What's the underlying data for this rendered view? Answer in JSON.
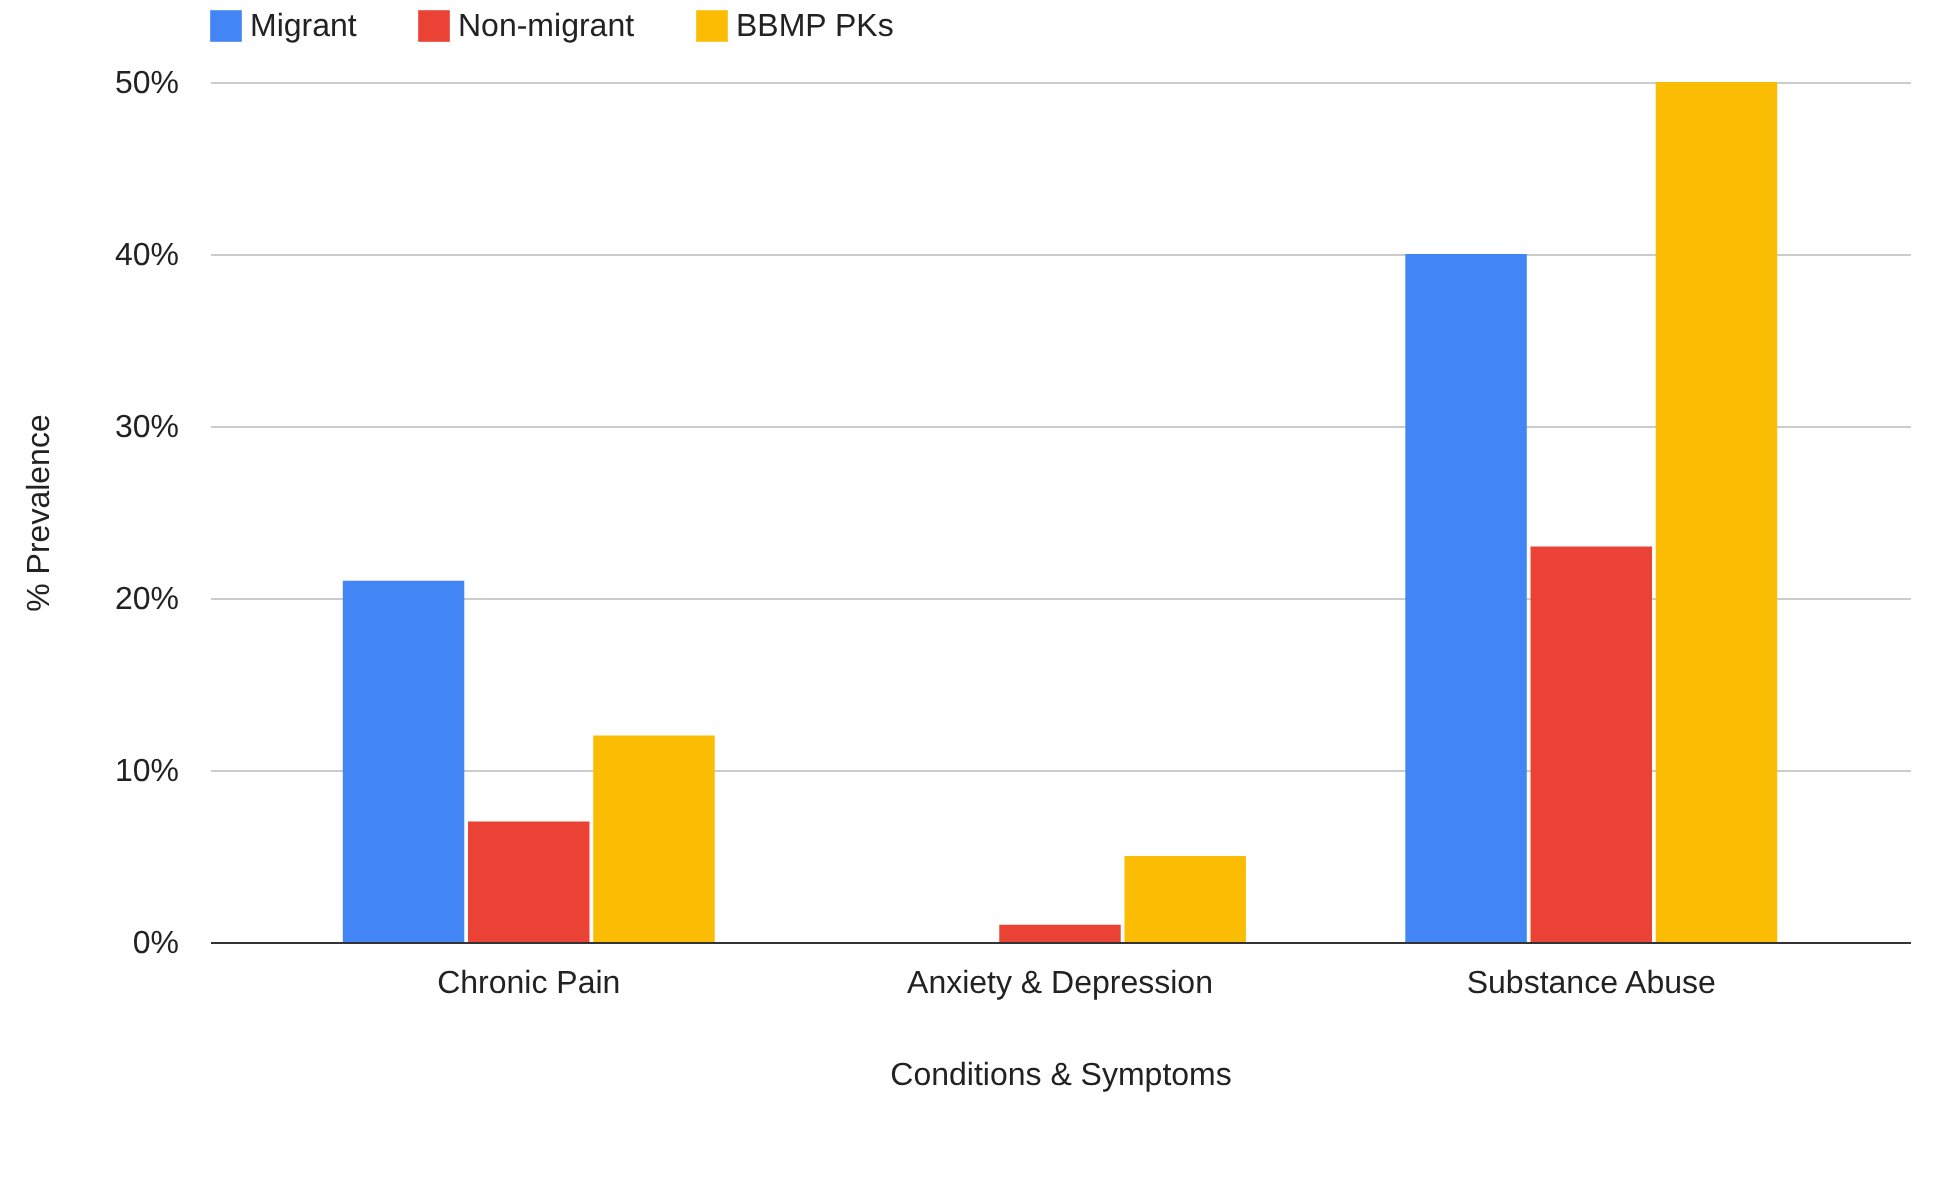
{
  "chart_data": {
    "type": "bar",
    "xlabel": "Conditions & Symptoms",
    "ylabel": "% Prevalence",
    "categories": [
      "Chronic Pain",
      "Anxiety & Depression",
      "Substance Abuse"
    ],
    "series": [
      {
        "name": "Migrant",
        "color": "#4285f4",
        "values": [
          21,
          0,
          40
        ]
      },
      {
        "name": "Non-migrant",
        "color": "#ea4335",
        "values": [
          7,
          1,
          23
        ]
      },
      {
        "name": "BBMP PKs",
        "color": "#fbbc04",
        "values": [
          12,
          5,
          50
        ]
      }
    ],
    "ylim": [
      0,
      50
    ],
    "yticks": [
      {
        "value": 0,
        "label": "0%"
      },
      {
        "value": 10,
        "label": "10%"
      },
      {
        "value": 20,
        "label": "20%"
      },
      {
        "value": 30,
        "label": "30%"
      },
      {
        "value": 40,
        "label": "40%"
      },
      {
        "value": 50,
        "label": "50%"
      }
    ],
    "grid": "y",
    "legend": "top"
  }
}
